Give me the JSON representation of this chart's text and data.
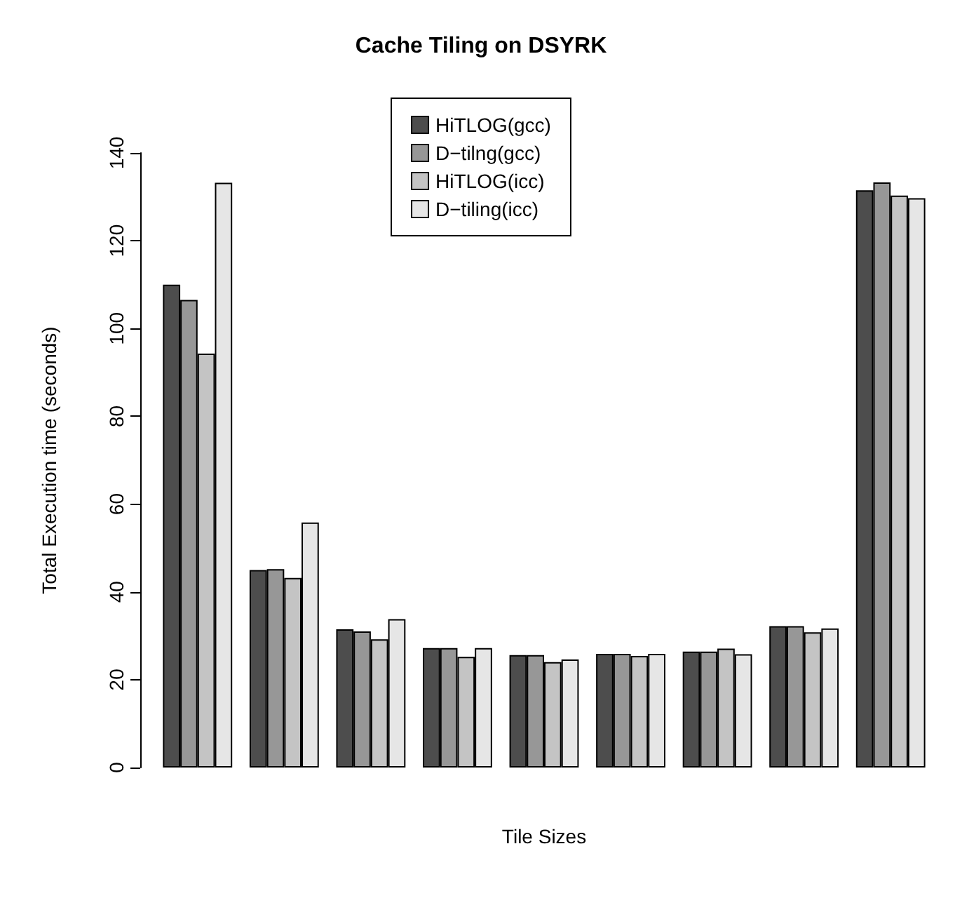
{
  "chart_data": {
    "type": "bar",
    "title": "Cache Tiling on DSYRK",
    "xlabel": "Tile Sizes",
    "ylabel": "Total Execution time (seconds)",
    "categories": [
      null,
      null,
      null,
      null,
      null,
      null,
      null,
      null,
      null
    ],
    "series": [
      {
        "name": "HiTLOG(gcc)",
        "color": "#4d4d4d",
        "values": [
          110,
          45,
          31.5,
          27.2,
          25.6,
          25.9,
          26.4,
          32.2,
          131.5
        ]
      },
      {
        "name": "D−tilng(gcc)",
        "color": "#979797",
        "values": [
          106.5,
          45.2,
          31,
          27.2,
          25.6,
          25.9,
          26.4,
          32.2,
          133.3
        ]
      },
      {
        "name": "HiTLOG(icc)",
        "color": "#c4c4c4",
        "values": [
          94.3,
          43.2,
          29.2,
          25.2,
          24,
          25.4,
          27.1,
          30.8,
          130.3
        ]
      },
      {
        "name": "D−tiling(icc)",
        "color": "#e6e6e6",
        "values": [
          133.2,
          55.8,
          33.8,
          27.2,
          24.6,
          25.9,
          25.8,
          31.7,
          129.7
        ]
      }
    ],
    "ylim": [
      0,
      140
    ],
    "yticks": [
      0,
      20,
      40,
      60,
      80,
      100,
      120,
      140
    ],
    "grid": false,
    "legend": "top"
  }
}
